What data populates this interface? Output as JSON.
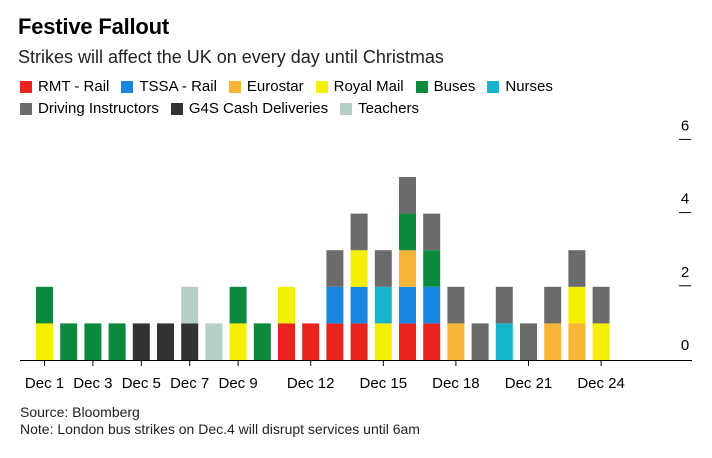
{
  "title": "Festive Fallout",
  "subtitle": "Strikes will affect the UK on every day until Christmas",
  "footer": {
    "source": "Source: Bloomberg",
    "note": "Note: London bus strikes on Dec.4 will disrupt services until 6am"
  },
  "chart_data": {
    "type": "bar",
    "stacked": true,
    "series": [
      {
        "name": "RMT - Rail",
        "color": "#e8241c"
      },
      {
        "name": "TSSA - Rail",
        "color": "#1a86e0"
      },
      {
        "name": "Eurostar",
        "color": "#f7b537"
      },
      {
        "name": "Royal Mail",
        "color": "#f5ee05"
      },
      {
        "name": "Buses",
        "color": "#0b8a3c"
      },
      {
        "name": "Nurses",
        "color": "#16b5cc"
      },
      {
        "name": "Driving Instructors",
        "color": "#6b6b6b"
      },
      {
        "name": "G4S Cash Deliveries",
        "color": "#333333"
      },
      {
        "name": "Teachers",
        "color": "#b5cfc6"
      }
    ],
    "categories": [
      "Dec 1",
      "Dec 2",
      "Dec 3",
      "Dec 4",
      "Dec 5",
      "Dec 6",
      "Dec 7",
      "Dec 8",
      "Dec 9",
      "Dec 10",
      "Dec 11",
      "Dec 12",
      "Dec 13",
      "Dec 14",
      "Dec 15",
      "Dec 16",
      "Dec 17",
      "Dec 18",
      "Dec 19",
      "Dec 20",
      "Dec 21",
      "Dec 22",
      "Dec 23",
      "Dec 24",
      "Dec 25"
    ],
    "stacks": [
      [
        "Royal Mail",
        "Buses"
      ],
      [
        "Buses"
      ],
      [
        "Buses"
      ],
      [
        "Buses"
      ],
      [
        "G4S Cash Deliveries"
      ],
      [
        "G4S Cash Deliveries"
      ],
      [
        "G4S Cash Deliveries",
        "Teachers"
      ],
      [
        "Teachers"
      ],
      [
        "Royal Mail",
        "Buses"
      ],
      [
        "Buses"
      ],
      [
        "RMT - Rail",
        "Royal Mail"
      ],
      [
        "RMT - Rail"
      ],
      [
        "RMT - Rail",
        "TSSA - Rail",
        "Driving Instructors"
      ],
      [
        "RMT - Rail",
        "TSSA - Rail",
        "Royal Mail",
        "Driving Instructors"
      ],
      [
        "Royal Mail",
        "Nurses",
        "Driving Instructors"
      ],
      [
        "RMT - Rail",
        "TSSA - Rail",
        "Eurostar",
        "Buses",
        "Driving Instructors"
      ],
      [
        "RMT - Rail",
        "TSSA - Rail",
        "Buses",
        "Driving Instructors"
      ],
      [
        "Eurostar",
        "Driving Instructors"
      ],
      [
        "Driving Instructors"
      ],
      [
        "Nurses",
        "Driving Instructors"
      ],
      [
        "Driving Instructors"
      ],
      [
        "Eurostar",
        "Driving Instructors"
      ],
      [
        "Eurostar",
        "Royal Mail",
        "Driving Instructors"
      ],
      [
        "Royal Mail",
        "Driving Instructors"
      ],
      []
    ],
    "x_tick_labels": [
      "Dec 1",
      "Dec 3",
      "Dec 5",
      "Dec 7",
      "Dec 9",
      "Dec 12",
      "Dec 15",
      "Dec 18",
      "Dec 21",
      "Dec 24"
    ],
    "y_ticks": [
      0,
      2,
      4,
      6
    ],
    "ylim": [
      0,
      6
    ],
    "y_axis_side": "right",
    "legend_position": "top"
  }
}
